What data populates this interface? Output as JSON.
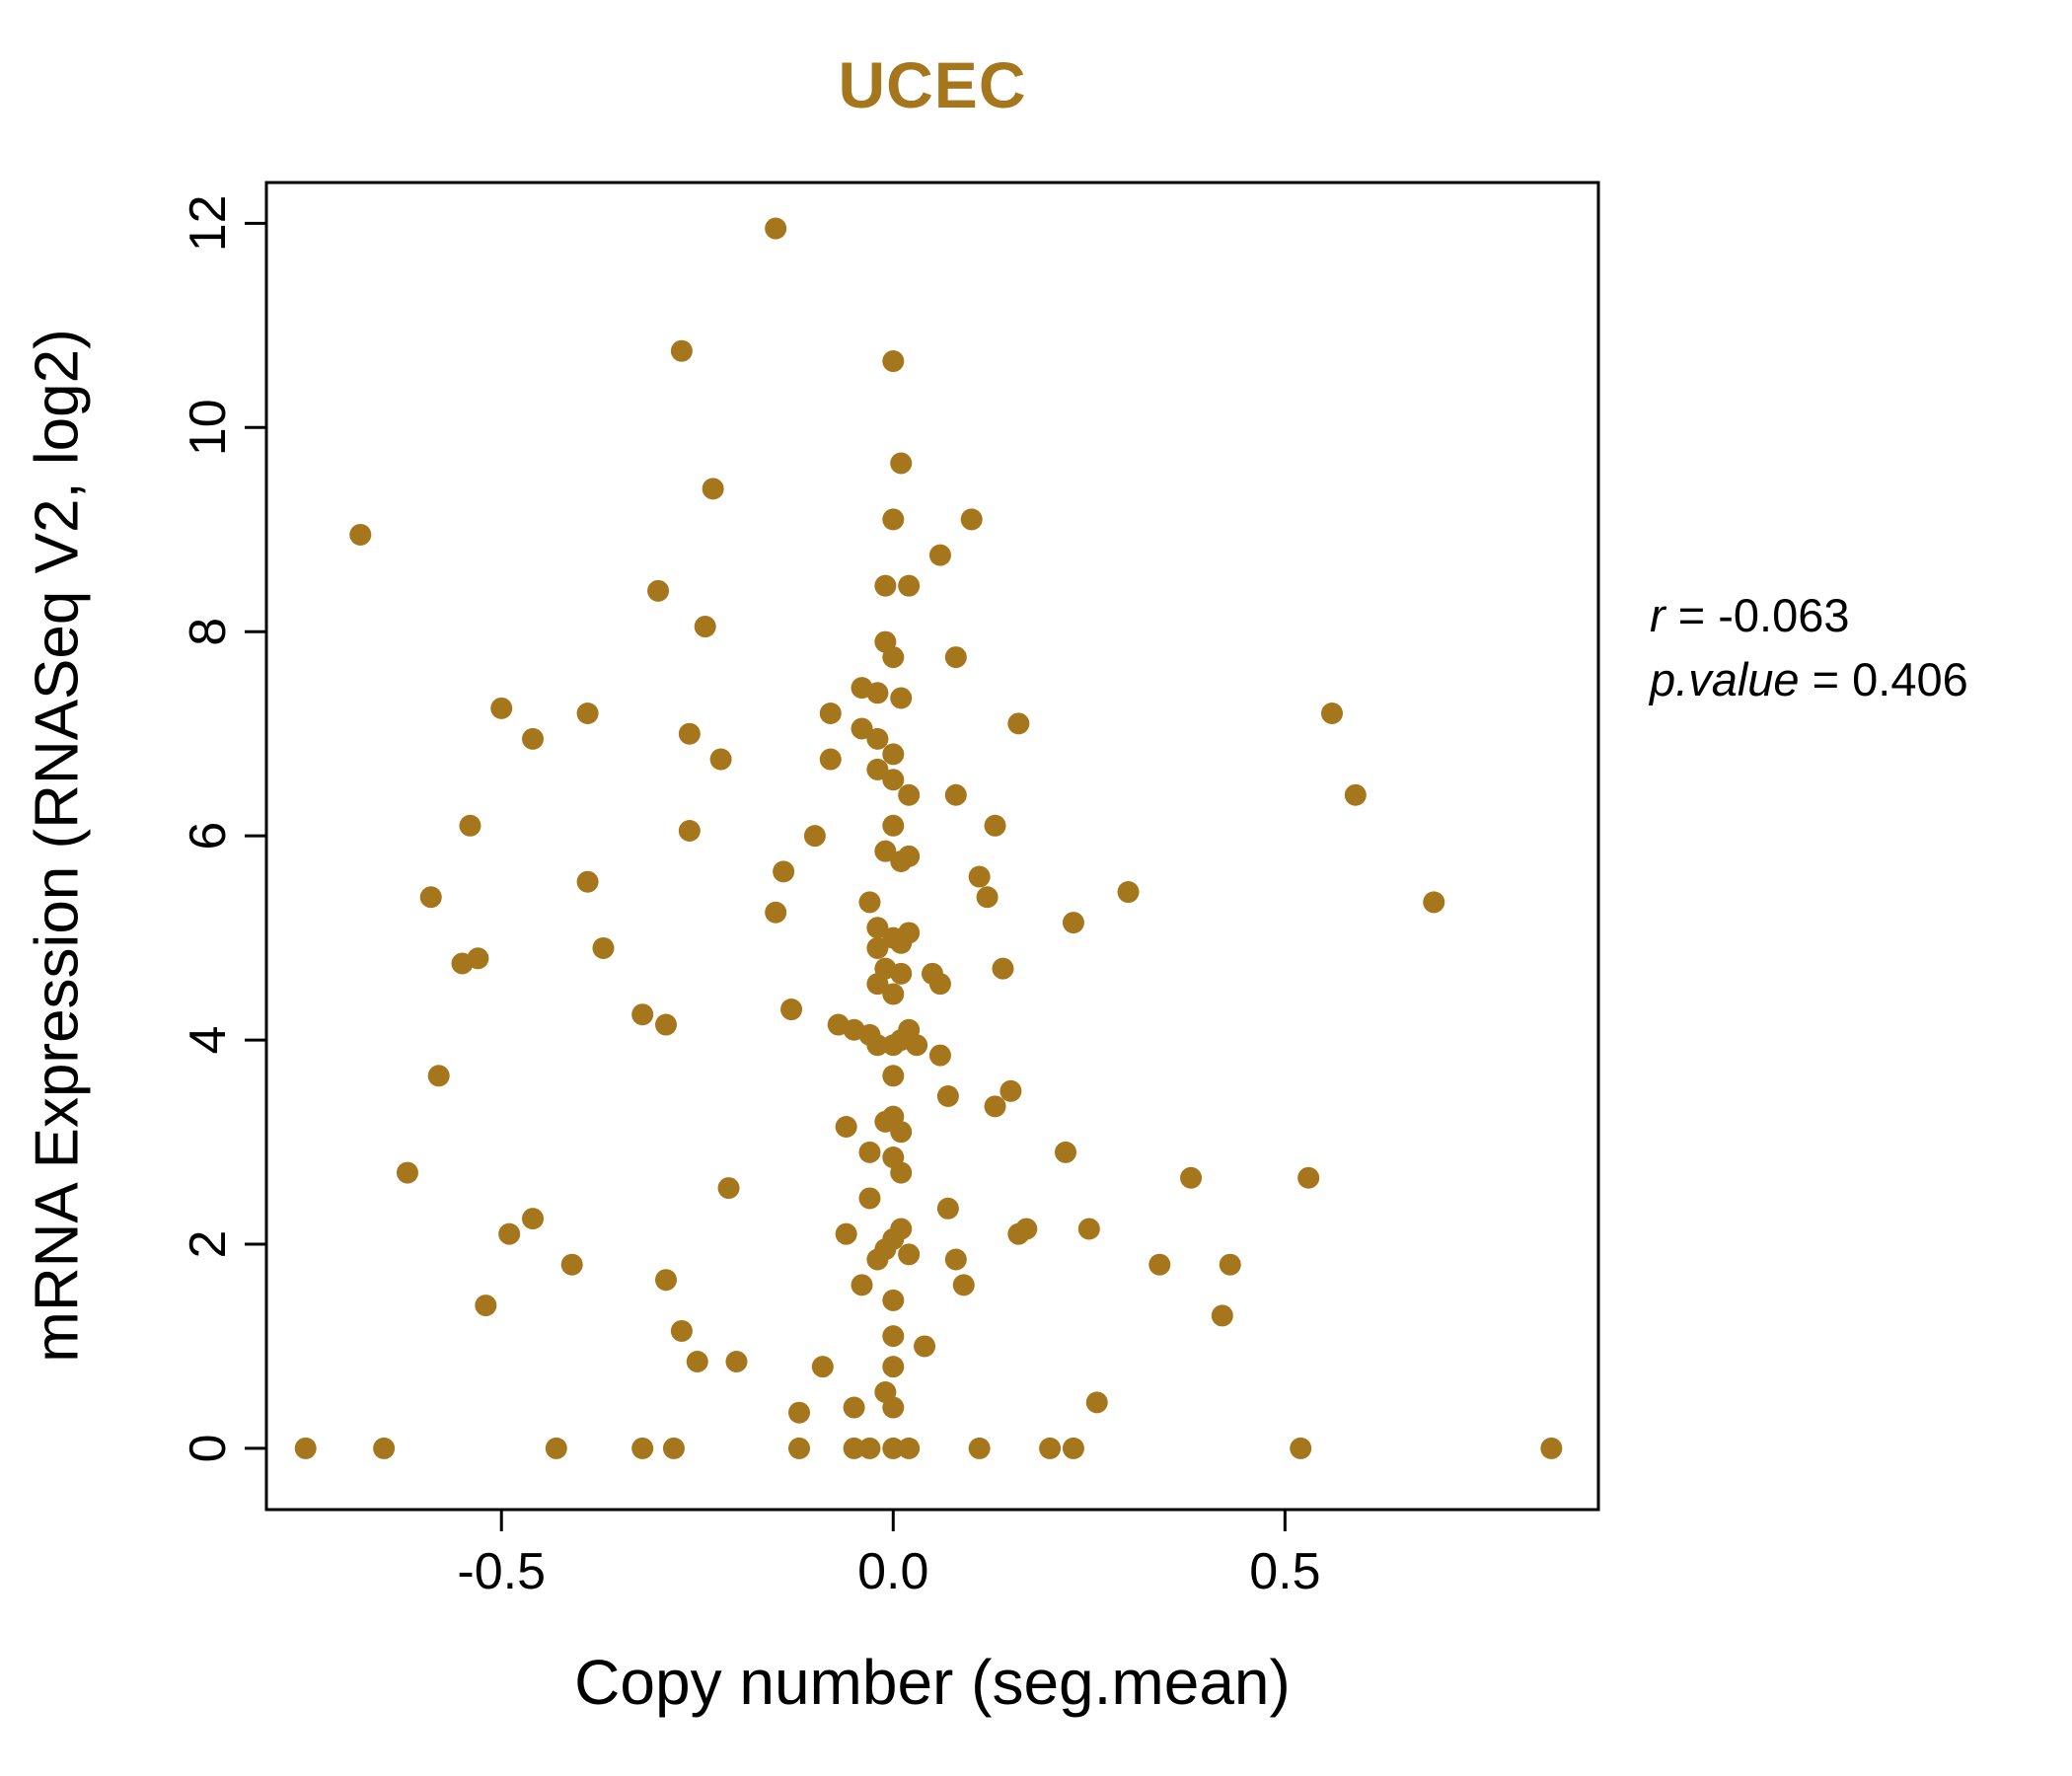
{
  "chart_data": {
    "type": "scatter",
    "title": "UCEC",
    "xlabel": "Copy number (seg.mean)",
    "ylabel": "mRNA Expression (RNASeq V2, log2)",
    "xlim": [
      -0.8,
      0.9
    ],
    "ylim": [
      -0.6,
      12.4
    ],
    "xticks": [
      -0.5,
      0.0,
      0.5
    ],
    "xtick_labels": [
      "-0.5",
      "0.0",
      "0.5"
    ],
    "yticks": [
      0,
      2,
      4,
      6,
      8,
      10,
      12
    ],
    "ytick_labels": [
      "0",
      "2",
      "4",
      "6",
      "8",
      "10",
      "12"
    ],
    "grid": false,
    "point_color": "#A6761D",
    "title_color": "#A6761D",
    "points": [
      [
        -0.15,
        11.95
      ],
      [
        -0.27,
        10.75
      ],
      [
        0.0,
        10.65
      ],
      [
        0.01,
        9.65
      ],
      [
        -0.23,
        9.4
      ],
      [
        0.0,
        9.1
      ],
      [
        0.1,
        9.1
      ],
      [
        -0.68,
        8.95
      ],
      [
        0.06,
        8.75
      ],
      [
        -0.3,
        8.4
      ],
      [
        -0.01,
        8.45
      ],
      [
        0.02,
        8.45
      ],
      [
        -0.24,
        8.05
      ],
      [
        -0.01,
        7.9
      ],
      [
        0.0,
        7.75
      ],
      [
        0.08,
        7.75
      ],
      [
        -0.04,
        7.45
      ],
      [
        -0.02,
        7.4
      ],
      [
        0.01,
        7.35
      ],
      [
        -0.5,
        7.25
      ],
      [
        -0.39,
        7.2
      ],
      [
        -0.08,
        7.2
      ],
      [
        0.56,
        7.2
      ],
      [
        0.16,
        7.1
      ],
      [
        -0.46,
        6.95
      ],
      [
        -0.26,
        7.0
      ],
      [
        -0.04,
        7.05
      ],
      [
        -0.02,
        6.95
      ],
      [
        0.0,
        6.8
      ],
      [
        -0.22,
        6.75
      ],
      [
        -0.08,
        6.75
      ],
      [
        -0.02,
        6.65
      ],
      [
        0.0,
        6.55
      ],
      [
        0.02,
        6.4
      ],
      [
        0.59,
        6.4
      ],
      [
        0.08,
        6.4
      ],
      [
        -0.26,
        6.05
      ],
      [
        -0.1,
        6.0
      ],
      [
        0.0,
        6.1
      ],
      [
        0.13,
        6.1
      ],
      [
        -0.54,
        6.1
      ],
      [
        -0.01,
        5.85
      ],
      [
        0.01,
        5.75
      ],
      [
        0.02,
        5.8
      ],
      [
        -0.14,
        5.65
      ],
      [
        0.11,
        5.6
      ],
      [
        -0.39,
        5.55
      ],
      [
        0.12,
        5.4
      ],
      [
        0.3,
        5.45
      ],
      [
        -0.59,
        5.4
      ],
      [
        0.69,
        5.35
      ],
      [
        -0.15,
        5.25
      ],
      [
        -0.03,
        5.35
      ],
      [
        -0.02,
        5.1
      ],
      [
        0.0,
        5.0
      ],
      [
        0.23,
        5.15
      ],
      [
        -0.37,
        4.9
      ],
      [
        -0.02,
        4.9
      ],
      [
        0.01,
        4.95
      ],
      [
        0.02,
        5.05
      ],
      [
        -0.55,
        4.75
      ],
      [
        -0.53,
        4.8
      ],
      [
        -0.01,
        4.7
      ],
      [
        0.01,
        4.65
      ],
      [
        0.05,
        4.65
      ],
      [
        0.14,
        4.7
      ],
      [
        -0.02,
        4.55
      ],
      [
        0.0,
        4.45
      ],
      [
        0.06,
        4.55
      ],
      [
        -0.32,
        4.25
      ],
      [
        -0.29,
        4.15
      ],
      [
        -0.13,
        4.3
      ],
      [
        -0.07,
        4.15
      ],
      [
        -0.05,
        4.1
      ],
      [
        -0.03,
        4.05
      ],
      [
        -0.02,
        3.95
      ],
      [
        0.0,
        3.95
      ],
      [
        0.01,
        4.0
      ],
      [
        0.02,
        4.1
      ],
      [
        0.03,
        3.95
      ],
      [
        0.06,
        3.85
      ],
      [
        -0.58,
        3.65
      ],
      [
        0.0,
        3.65
      ],
      [
        0.07,
        3.45
      ],
      [
        0.15,
        3.5
      ],
      [
        0.13,
        3.35
      ],
      [
        -0.06,
        3.15
      ],
      [
        -0.01,
        3.2
      ],
      [
        0.0,
        3.25
      ],
      [
        0.01,
        3.1
      ],
      [
        -0.03,
        2.9
      ],
      [
        0.0,
        2.85
      ],
      [
        0.22,
        2.9
      ],
      [
        -0.62,
        2.7
      ],
      [
        0.01,
        2.7
      ],
      [
        0.38,
        2.65
      ],
      [
        0.53,
        2.65
      ],
      [
        -0.21,
        2.55
      ],
      [
        -0.03,
        2.45
      ],
      [
        0.07,
        2.35
      ],
      [
        -0.46,
        2.25
      ],
      [
        -0.49,
        2.1
      ],
      [
        -0.06,
        2.1
      ],
      [
        0.0,
        2.05
      ],
      [
        0.01,
        2.15
      ],
      [
        0.25,
        2.15
      ],
      [
        0.16,
        2.1
      ],
      [
        0.17,
        2.15
      ],
      [
        -0.01,
        1.95
      ],
      [
        -0.02,
        1.85
      ],
      [
        0.02,
        1.9
      ],
      [
        0.08,
        1.85
      ],
      [
        0.34,
        1.8
      ],
      [
        0.43,
        1.8
      ],
      [
        -0.41,
        1.8
      ],
      [
        -0.29,
        1.65
      ],
      [
        -0.04,
        1.6
      ],
      [
        0.0,
        1.45
      ],
      [
        -0.52,
        1.4
      ],
      [
        0.09,
        1.6
      ],
      [
        0.42,
        1.3
      ],
      [
        -0.27,
        1.15
      ],
      [
        0.0,
        1.1
      ],
      [
        0.04,
        1.0
      ],
      [
        -0.25,
        0.85
      ],
      [
        -0.2,
        0.85
      ],
      [
        -0.09,
        0.8
      ],
      [
        0.0,
        0.8
      ],
      [
        -0.01,
        0.55
      ],
      [
        0.0,
        0.4
      ],
      [
        -0.05,
        0.4
      ],
      [
        -0.12,
        0.35
      ],
      [
        0.26,
        0.45
      ],
      [
        -0.75,
        0.0
      ],
      [
        -0.65,
        0.0
      ],
      [
        -0.43,
        0.0
      ],
      [
        -0.32,
        0.0
      ],
      [
        -0.28,
        0.0
      ],
      [
        -0.12,
        0.0
      ],
      [
        -0.05,
        0.0
      ],
      [
        -0.03,
        0.0
      ],
      [
        0.0,
        0.0
      ],
      [
        0.02,
        0.0
      ],
      [
        0.11,
        0.0
      ],
      [
        0.2,
        0.0
      ],
      [
        0.23,
        0.0
      ],
      [
        0.52,
        0.0
      ],
      [
        0.84,
        0.0
      ]
    ]
  },
  "annotation": {
    "r_var": "r",
    "r_rest": " = -0.063",
    "p_var": "p.value",
    "p_rest": " = 0.406"
  }
}
